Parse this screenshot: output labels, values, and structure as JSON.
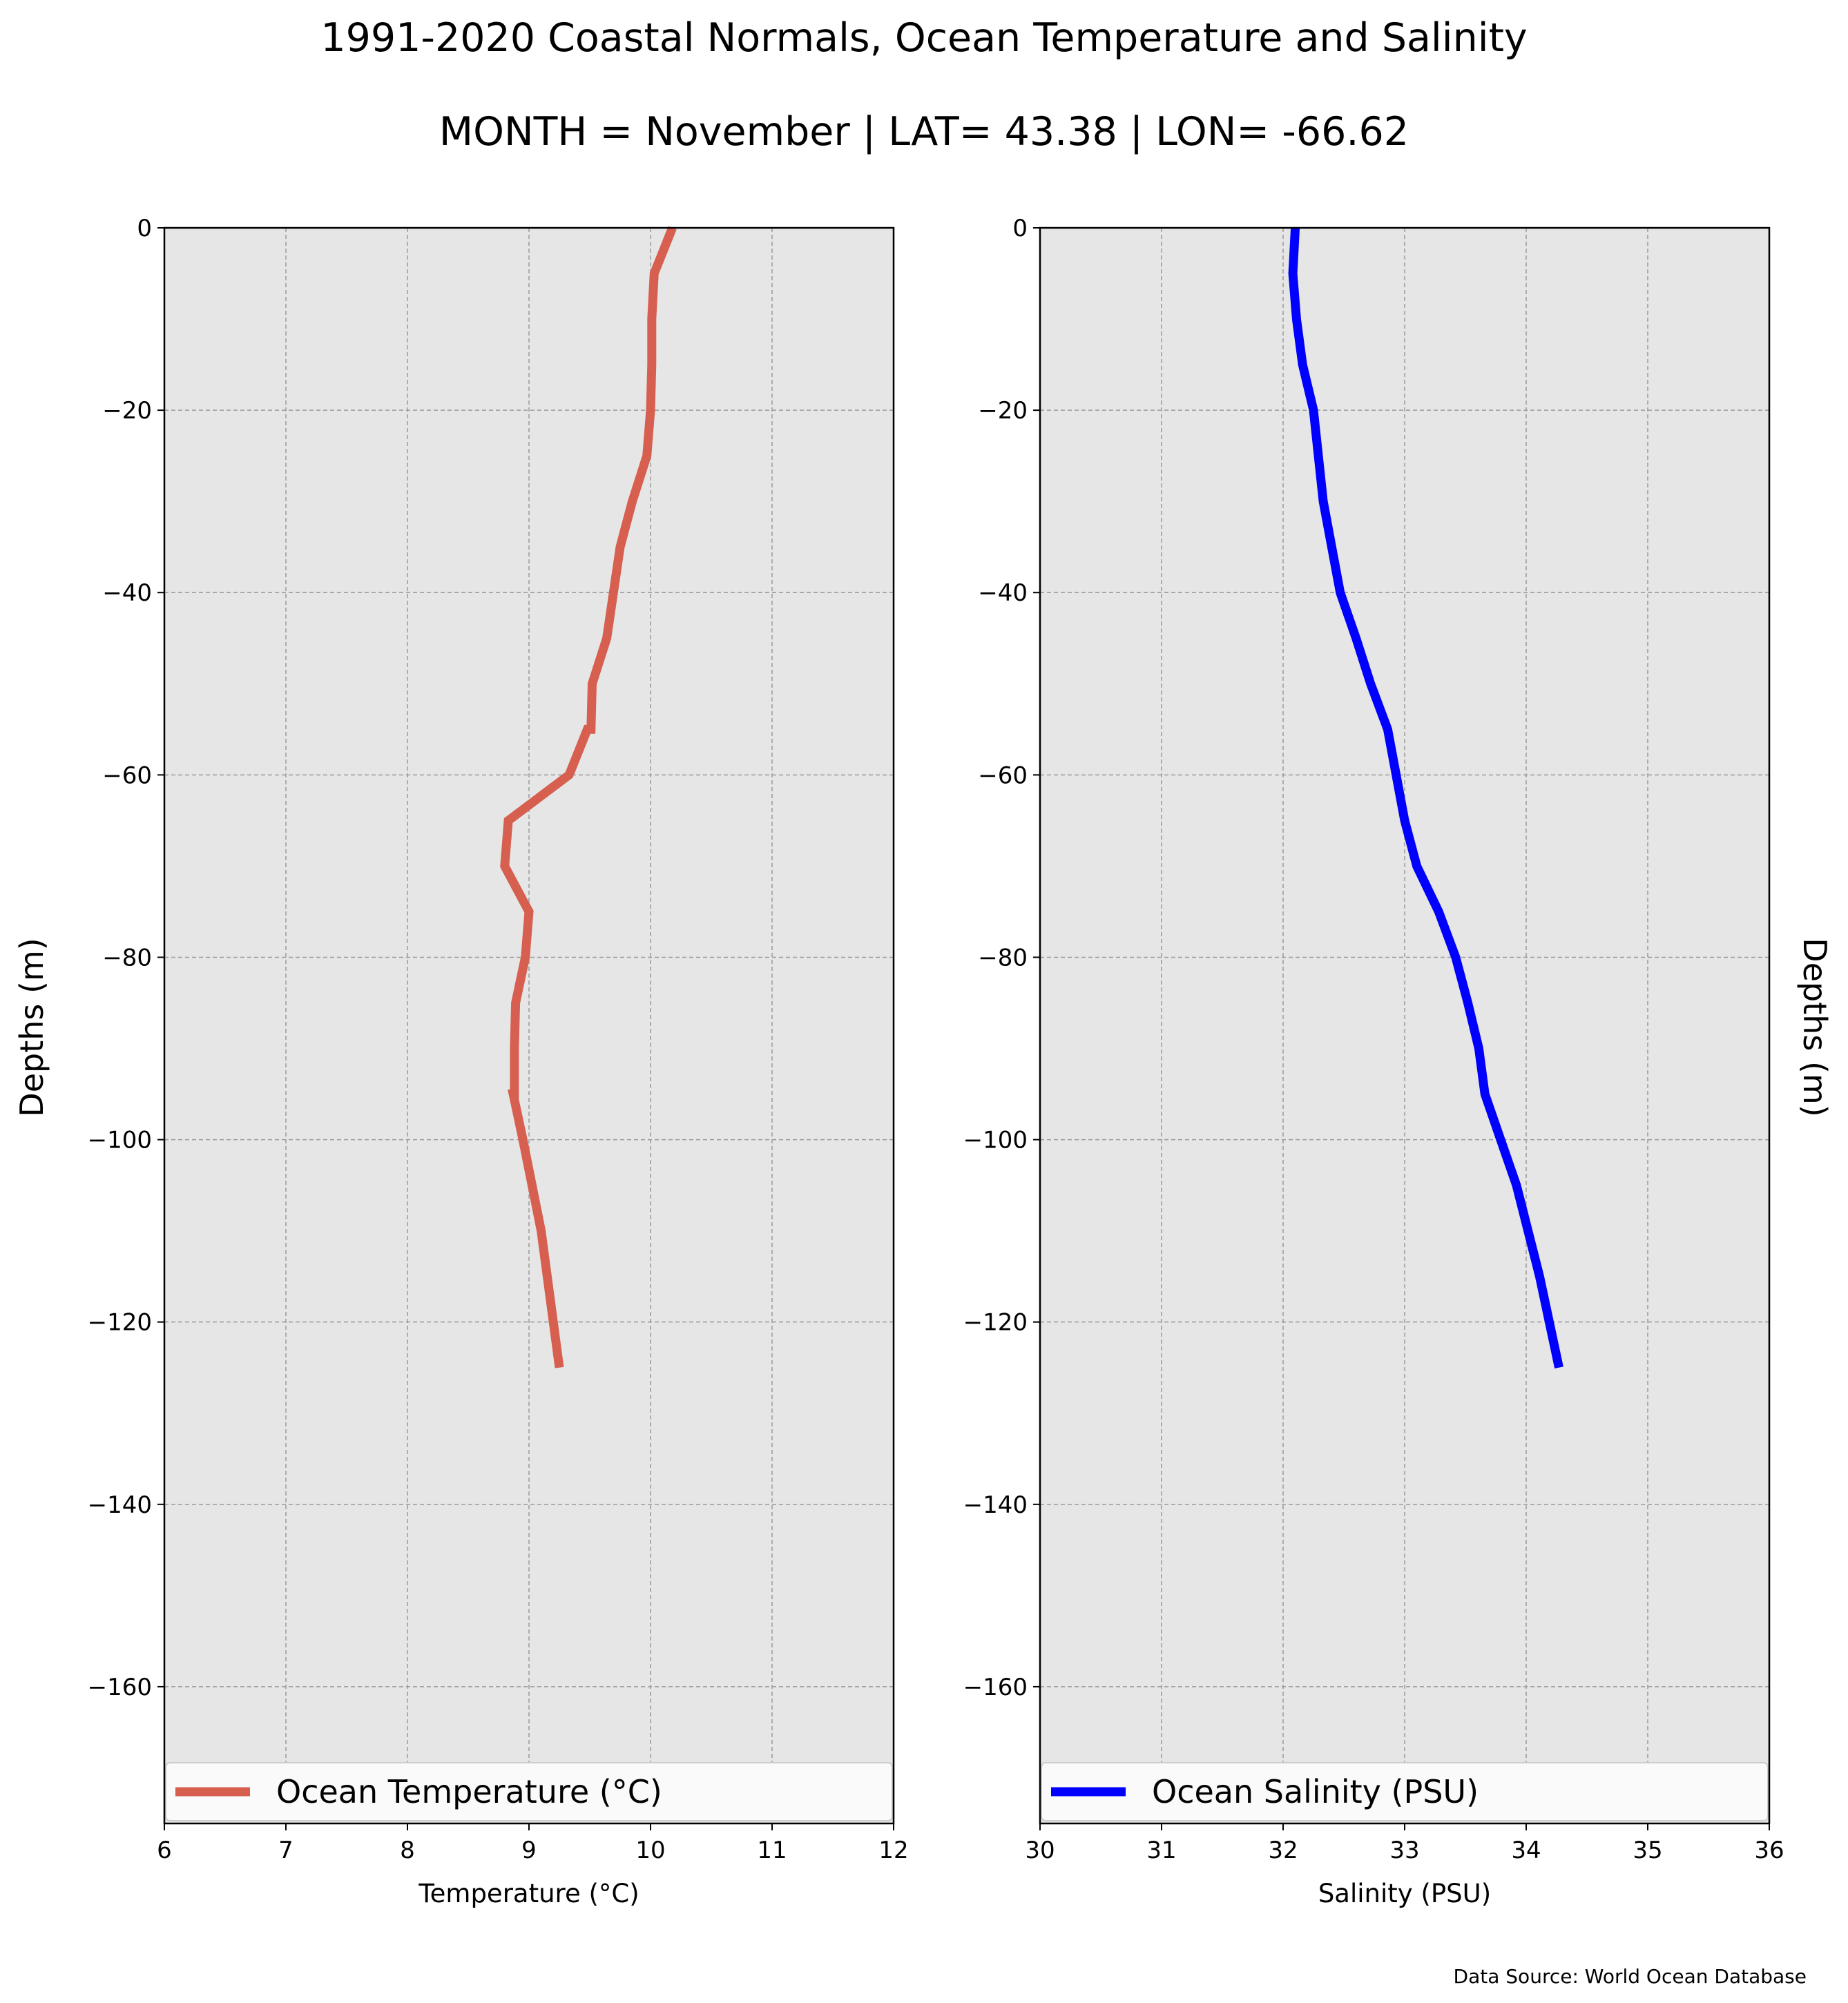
{
  "figure": {
    "title": "1991-2020 Coastal Normals, Ocean Temperature and Salinity",
    "subtitle": "MONTH = November | LAT= 43.38 | LON= -66.62",
    "source": "Data Source: World Ocean Database"
  },
  "chart_data": [
    {
      "type": "line",
      "orientation": "vertical-profile",
      "xlabel": "Temperature ($^\\circ$C)",
      "xlabel_display": "Temperature (°C)",
      "ylabel": "Depths (m)",
      "xlim": [
        6,
        12
      ],
      "ylim": [
        -175,
        0
      ],
      "xticks": [
        6,
        7,
        8,
        9,
        10,
        11,
        12
      ],
      "yticks": [
        0,
        -20,
        -40,
        -60,
        -80,
        -100,
        -120,
        -140,
        -160
      ],
      "ytick_labels": [
        "0",
        "−20",
        "−40",
        "−60",
        "−80",
        "−100",
        "−120",
        "−140",
        "−160"
      ],
      "grid": true,
      "legend_position": "bottom",
      "series": [
        {
          "name": "Ocean Temperature ($^\\circ$C)",
          "legend_label": "Ocean Temperature (°C)",
          "color": "#d65f4f",
          "x": [
            10.18,
            10.03,
            10.01,
            10.01,
            10.0,
            9.97,
            9.85,
            9.75,
            9.64,
            9.52,
            9.51,
            9.48,
            9.33,
            8.83,
            8.8,
            9.0,
            8.97,
            8.89,
            8.88,
            8.88,
            8.87,
            8.95,
            9.1,
            9.25
          ],
          "y": [
            0,
            -5,
            -10,
            -15,
            -20,
            -25,
            -30,
            -35,
            -45,
            -50,
            -55,
            -55,
            -60,
            -65,
            -70,
            -75,
            -80,
            -85,
            -90,
            -95,
            -95,
            -100,
            -110,
            -125
          ]
        }
      ]
    },
    {
      "type": "line",
      "orientation": "vertical-profile",
      "xlabel": "Salinity (PSU)",
      "ylabel": "Depths (m)",
      "xlim": [
        30,
        36
      ],
      "ylim": [
        -175,
        0
      ],
      "xticks": [
        30,
        31,
        32,
        33,
        34,
        35,
        36
      ],
      "yticks": [
        0,
        -20,
        -40,
        -60,
        -80,
        -100,
        -120,
        -140,
        -160
      ],
      "ytick_labels": [
        "0",
        "−20",
        "−40",
        "−60",
        "−80",
        "−100",
        "−120",
        "−140",
        "−160"
      ],
      "grid": true,
      "legend_position": "bottom",
      "series": [
        {
          "name": "Ocean Salinity (PSU)",
          "color": "#0000ff",
          "x": [
            32.1,
            32.08,
            32.11,
            32.16,
            32.25,
            32.33,
            32.47,
            32.6,
            32.72,
            32.86,
            33.0,
            33.1,
            33.28,
            33.42,
            33.52,
            33.61,
            33.66,
            33.79,
            33.92,
            34.11,
            34.27
          ],
          "y": [
            0,
            -5,
            -10,
            -15,
            -20,
            -30,
            -40,
            -45,
            -50,
            -55,
            -65,
            -70,
            -75,
            -80,
            -85,
            -90,
            -95,
            -100,
            -105,
            -115,
            -125
          ]
        }
      ]
    }
  ]
}
